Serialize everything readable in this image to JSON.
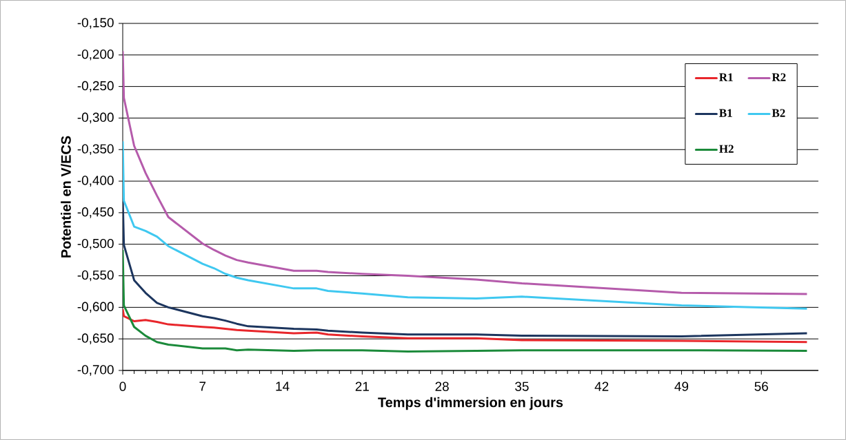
{
  "chart_data": {
    "type": "line",
    "xlabel": "Temps d'immersion en jours",
    "ylabel": "Potentiel en V/ECS",
    "xlim": [
      0,
      61
    ],
    "xticks": [
      0,
      7,
      14,
      21,
      28,
      35,
      42,
      49,
      56
    ],
    "ylim": [
      -0.7,
      -0.15
    ],
    "yticks": [
      {
        "value": -0.7,
        "label": "-0,700"
      },
      {
        "value": -0.65,
        "label": "-0,650"
      },
      {
        "value": -0.6,
        "label": "-0,600"
      },
      {
        "value": -0.55,
        "label": "-0,550"
      },
      {
        "value": -0.5,
        "label": "-0,500"
      },
      {
        "value": -0.45,
        "label": "-0,450"
      },
      {
        "value": -0.4,
        "label": "-0,400"
      },
      {
        "value": -0.35,
        "label": "-0,350"
      },
      {
        "value": -0.3,
        "label": "-0,300"
      },
      {
        "value": -0.25,
        "label": "-0,250"
      },
      {
        "value": -0.2,
        "label": "-0,200"
      },
      {
        "value": -0.15,
        "label": "-0,150"
      }
    ],
    "grid": "y",
    "legend": "top right",
    "x": [
      0,
      0.1,
      1,
      2,
      3,
      4,
      7,
      8,
      9,
      10,
      11,
      15,
      17,
      18,
      21,
      25,
      31,
      35,
      49,
      60
    ],
    "series": [
      {
        "name": "R1",
        "color": "#e8262b",
        "values": [
          -0.603,
          -0.614,
          -0.622,
          -0.62,
          -0.623,
          -0.627,
          -0.631,
          -0.632,
          -0.634,
          -0.636,
          -0.637,
          -0.641,
          -0.64,
          -0.643,
          -0.646,
          -0.649,
          -0.649,
          -0.652,
          -0.653,
          -0.655
        ]
      },
      {
        "name": "R2",
        "color": "#b55bab",
        "values": [
          -0.194,
          -0.268,
          -0.344,
          -0.387,
          -0.423,
          -0.457,
          -0.499,
          -0.509,
          -0.518,
          -0.525,
          -0.529,
          -0.542,
          -0.542,
          -0.544,
          -0.547,
          -0.55,
          -0.556,
          -0.562,
          -0.577,
          -0.579
        ]
      },
      {
        "name": "B1",
        "color": "#1c355e",
        "values": [
          -0.427,
          -0.501,
          -0.557,
          -0.577,
          -0.593,
          -0.6,
          -0.614,
          -0.617,
          -0.621,
          -0.626,
          -0.63,
          -0.634,
          -0.635,
          -0.637,
          -0.64,
          -0.643,
          -0.643,
          -0.645,
          -0.646,
          -0.641
        ]
      },
      {
        "name": "B2",
        "color": "#3fc8f0",
        "values": [
          -0.337,
          -0.431,
          -0.472,
          -0.479,
          -0.488,
          -0.503,
          -0.531,
          -0.538,
          -0.547,
          -0.553,
          -0.557,
          -0.57,
          -0.57,
          -0.574,
          -0.578,
          -0.584,
          -0.586,
          -0.583,
          -0.597,
          -0.602
        ]
      },
      {
        "name": "H2",
        "color": "#1b8a3a",
        "values": [
          -0.509,
          -0.597,
          -0.631,
          -0.645,
          -0.655,
          -0.659,
          -0.665,
          -0.665,
          -0.665,
          -0.668,
          -0.667,
          -0.669,
          -0.668,
          -0.668,
          -0.668,
          -0.67,
          -0.669,
          -0.668,
          -0.668,
          -0.669
        ]
      }
    ]
  }
}
